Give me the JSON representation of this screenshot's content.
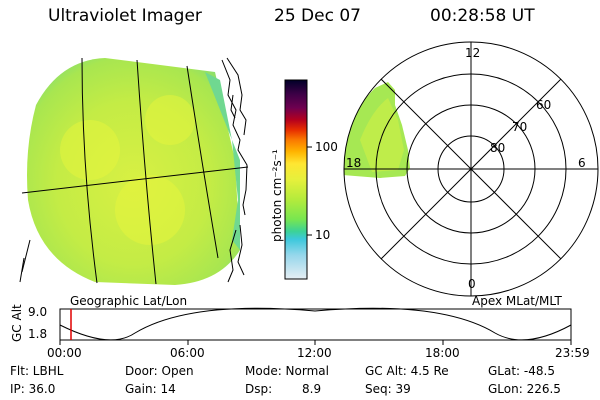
{
  "header": {
    "instrument": "Ultraviolet Imager",
    "date": "25 Dec 07",
    "time": "00:28:58 UT"
  },
  "colorbar": {
    "label": "photon cm⁻²s⁻¹",
    "ticks": [
      "100",
      "10"
    ],
    "colors": [
      "#000028",
      "#1a0032",
      "#3c0046",
      "#5a005a",
      "#780046",
      "#9b0028",
      "#c80014",
      "#e62d00",
      "#f55a00",
      "#fa8c00",
      "#ffbe00",
      "#ffdc28",
      "#f0f03c",
      "#d2f03c",
      "#aaf03c",
      "#78e650",
      "#50dc78",
      "#3cd2b4",
      "#3cc8dc",
      "#78d2e6",
      "#aadcf0",
      "#d2e6f0",
      "#e6eef4"
    ]
  },
  "panels": {
    "left_caption": "Geographic Lat/Lon",
    "right_caption": "Apex MLat/MLT",
    "mlt_labels": {
      "top": "12",
      "bottom": "0",
      "left": "18",
      "right": "6"
    },
    "mlat_labels": [
      "60",
      "70",
      "80"
    ]
  },
  "altitude_plot": {
    "ylabel": "GC Alt",
    "yticks": [
      "9.0",
      "1.8"
    ],
    "xticks": [
      "00:00",
      "06:00",
      "12:00",
      "18:00",
      "23:59"
    ],
    "cursor_color": "#e00000"
  },
  "footer": {
    "filter": "Flt: LBHL",
    "door": "Door: Open",
    "mode": "Mode: Normal",
    "gc_alt": "GC Alt: 4.5 Re",
    "glat": "GLat: -48.5",
    "ip": "IP: 36.0",
    "gain": "Gain: 14",
    "dsp_label": "Dsp:",
    "dsp_value": "8.9",
    "seq": "Seq: 39",
    "glon": "GLon: 226.5"
  }
}
